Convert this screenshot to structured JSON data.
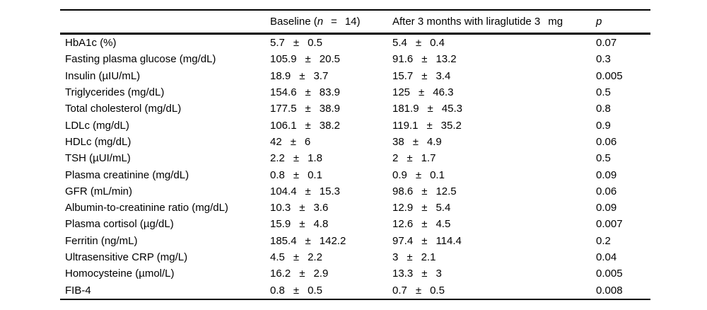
{
  "table": {
    "pm": "±",
    "header": {
      "baseline": {
        "prefix": "Baseline (",
        "n_italic": "n",
        "equals": "=",
        "count": "14)"
      },
      "after": {
        "label": "After 3 months with liraglutide 3",
        "unit": "mg"
      },
      "p": "p"
    },
    "rows": [
      {
        "label": "HbA1c (%)",
        "baseline": {
          "mean": "5.7",
          "sd": "0.5"
        },
        "after": {
          "mean": "5.4",
          "sd": "0.4"
        },
        "p": "0.07"
      },
      {
        "label": "Fasting plasma glucose (mg/dL)",
        "baseline": {
          "mean": "105.9",
          "sd": "20.5"
        },
        "after": {
          "mean": "91.6",
          "sd": "13.2"
        },
        "p": "0.3"
      },
      {
        "label": "Insulin (µIU/mL)",
        "baseline": {
          "mean": "18.9",
          "sd": "3.7"
        },
        "after": {
          "mean": "15.7",
          "sd": "3.4"
        },
        "p": "0.005"
      },
      {
        "label": "Triglycerides (mg/dL)",
        "baseline": {
          "mean": "154.6",
          "sd": "83.9"
        },
        "after": {
          "mean": "125",
          "sd": "46.3"
        },
        "p": "0.5"
      },
      {
        "label": "Total cholesterol (mg/dL)",
        "baseline": {
          "mean": "177.5",
          "sd": "38.9"
        },
        "after": {
          "mean": "181.9",
          "sd": "45.3"
        },
        "p": "0.8"
      },
      {
        "label": "LDLc (mg/dL)",
        "baseline": {
          "mean": "106.1",
          "sd": "38.2"
        },
        "after": {
          "mean": "119.1",
          "sd": "35.2"
        },
        "p": "0.9"
      },
      {
        "label": "HDLc (mg/dL)",
        "baseline": {
          "mean": "42",
          "sd": "6"
        },
        "after": {
          "mean": "38",
          "sd": "4.9"
        },
        "p": "0.06"
      },
      {
        "label": "TSH (µUI/mL)",
        "baseline": {
          "mean": "2.2",
          "sd": "1.8"
        },
        "after": {
          "mean": "2",
          "sd": "1.7"
        },
        "p": "0.5"
      },
      {
        "label": "Plasma creatinine (mg/dL)",
        "baseline": {
          "mean": "0.8",
          "sd": "0.1"
        },
        "after": {
          "mean": "0.9",
          "sd": "0.1"
        },
        "p": "0.09"
      },
      {
        "label": "GFR (mL/min)",
        "baseline": {
          "mean": "104.4",
          "sd": "15.3"
        },
        "after": {
          "mean": "98.6",
          "sd": "12.5"
        },
        "p": "0.06"
      },
      {
        "label": "Albumin-to-creatinine ratio (mg/dL)",
        "baseline": {
          "mean": "10.3",
          "sd": "3.6"
        },
        "after": {
          "mean": "12.9",
          "sd": "5.4"
        },
        "p": "0.09"
      },
      {
        "label": "Plasma cortisol (µg/dL)",
        "baseline": {
          "mean": "15.9",
          "sd": "4.8"
        },
        "after": {
          "mean": "12.6",
          "sd": "4.5"
        },
        "p": "0.007"
      },
      {
        "label": "Ferritin (ng/mL)",
        "baseline": {
          "mean": "185.4",
          "sd": "142.2"
        },
        "after": {
          "mean": "97.4",
          "sd": "114.4"
        },
        "p": "0.2"
      },
      {
        "label": "Ultrasensitive CRP (mg/L)",
        "baseline": {
          "mean": "4.5",
          "sd": "2.2"
        },
        "after": {
          "mean": "3",
          "sd": "2.1"
        },
        "p": "0.04"
      },
      {
        "label": "Homocysteine (µmol/L)",
        "baseline": {
          "mean": "16.2",
          "sd": "2.9"
        },
        "after": {
          "mean": "13.3",
          "sd": "3"
        },
        "p": "0.005"
      },
      {
        "label": "FIB-4",
        "baseline": {
          "mean": "0.8",
          "sd": "0.5"
        },
        "after": {
          "mean": "0.7",
          "sd": "0.5"
        },
        "p": "0.008"
      }
    ]
  }
}
